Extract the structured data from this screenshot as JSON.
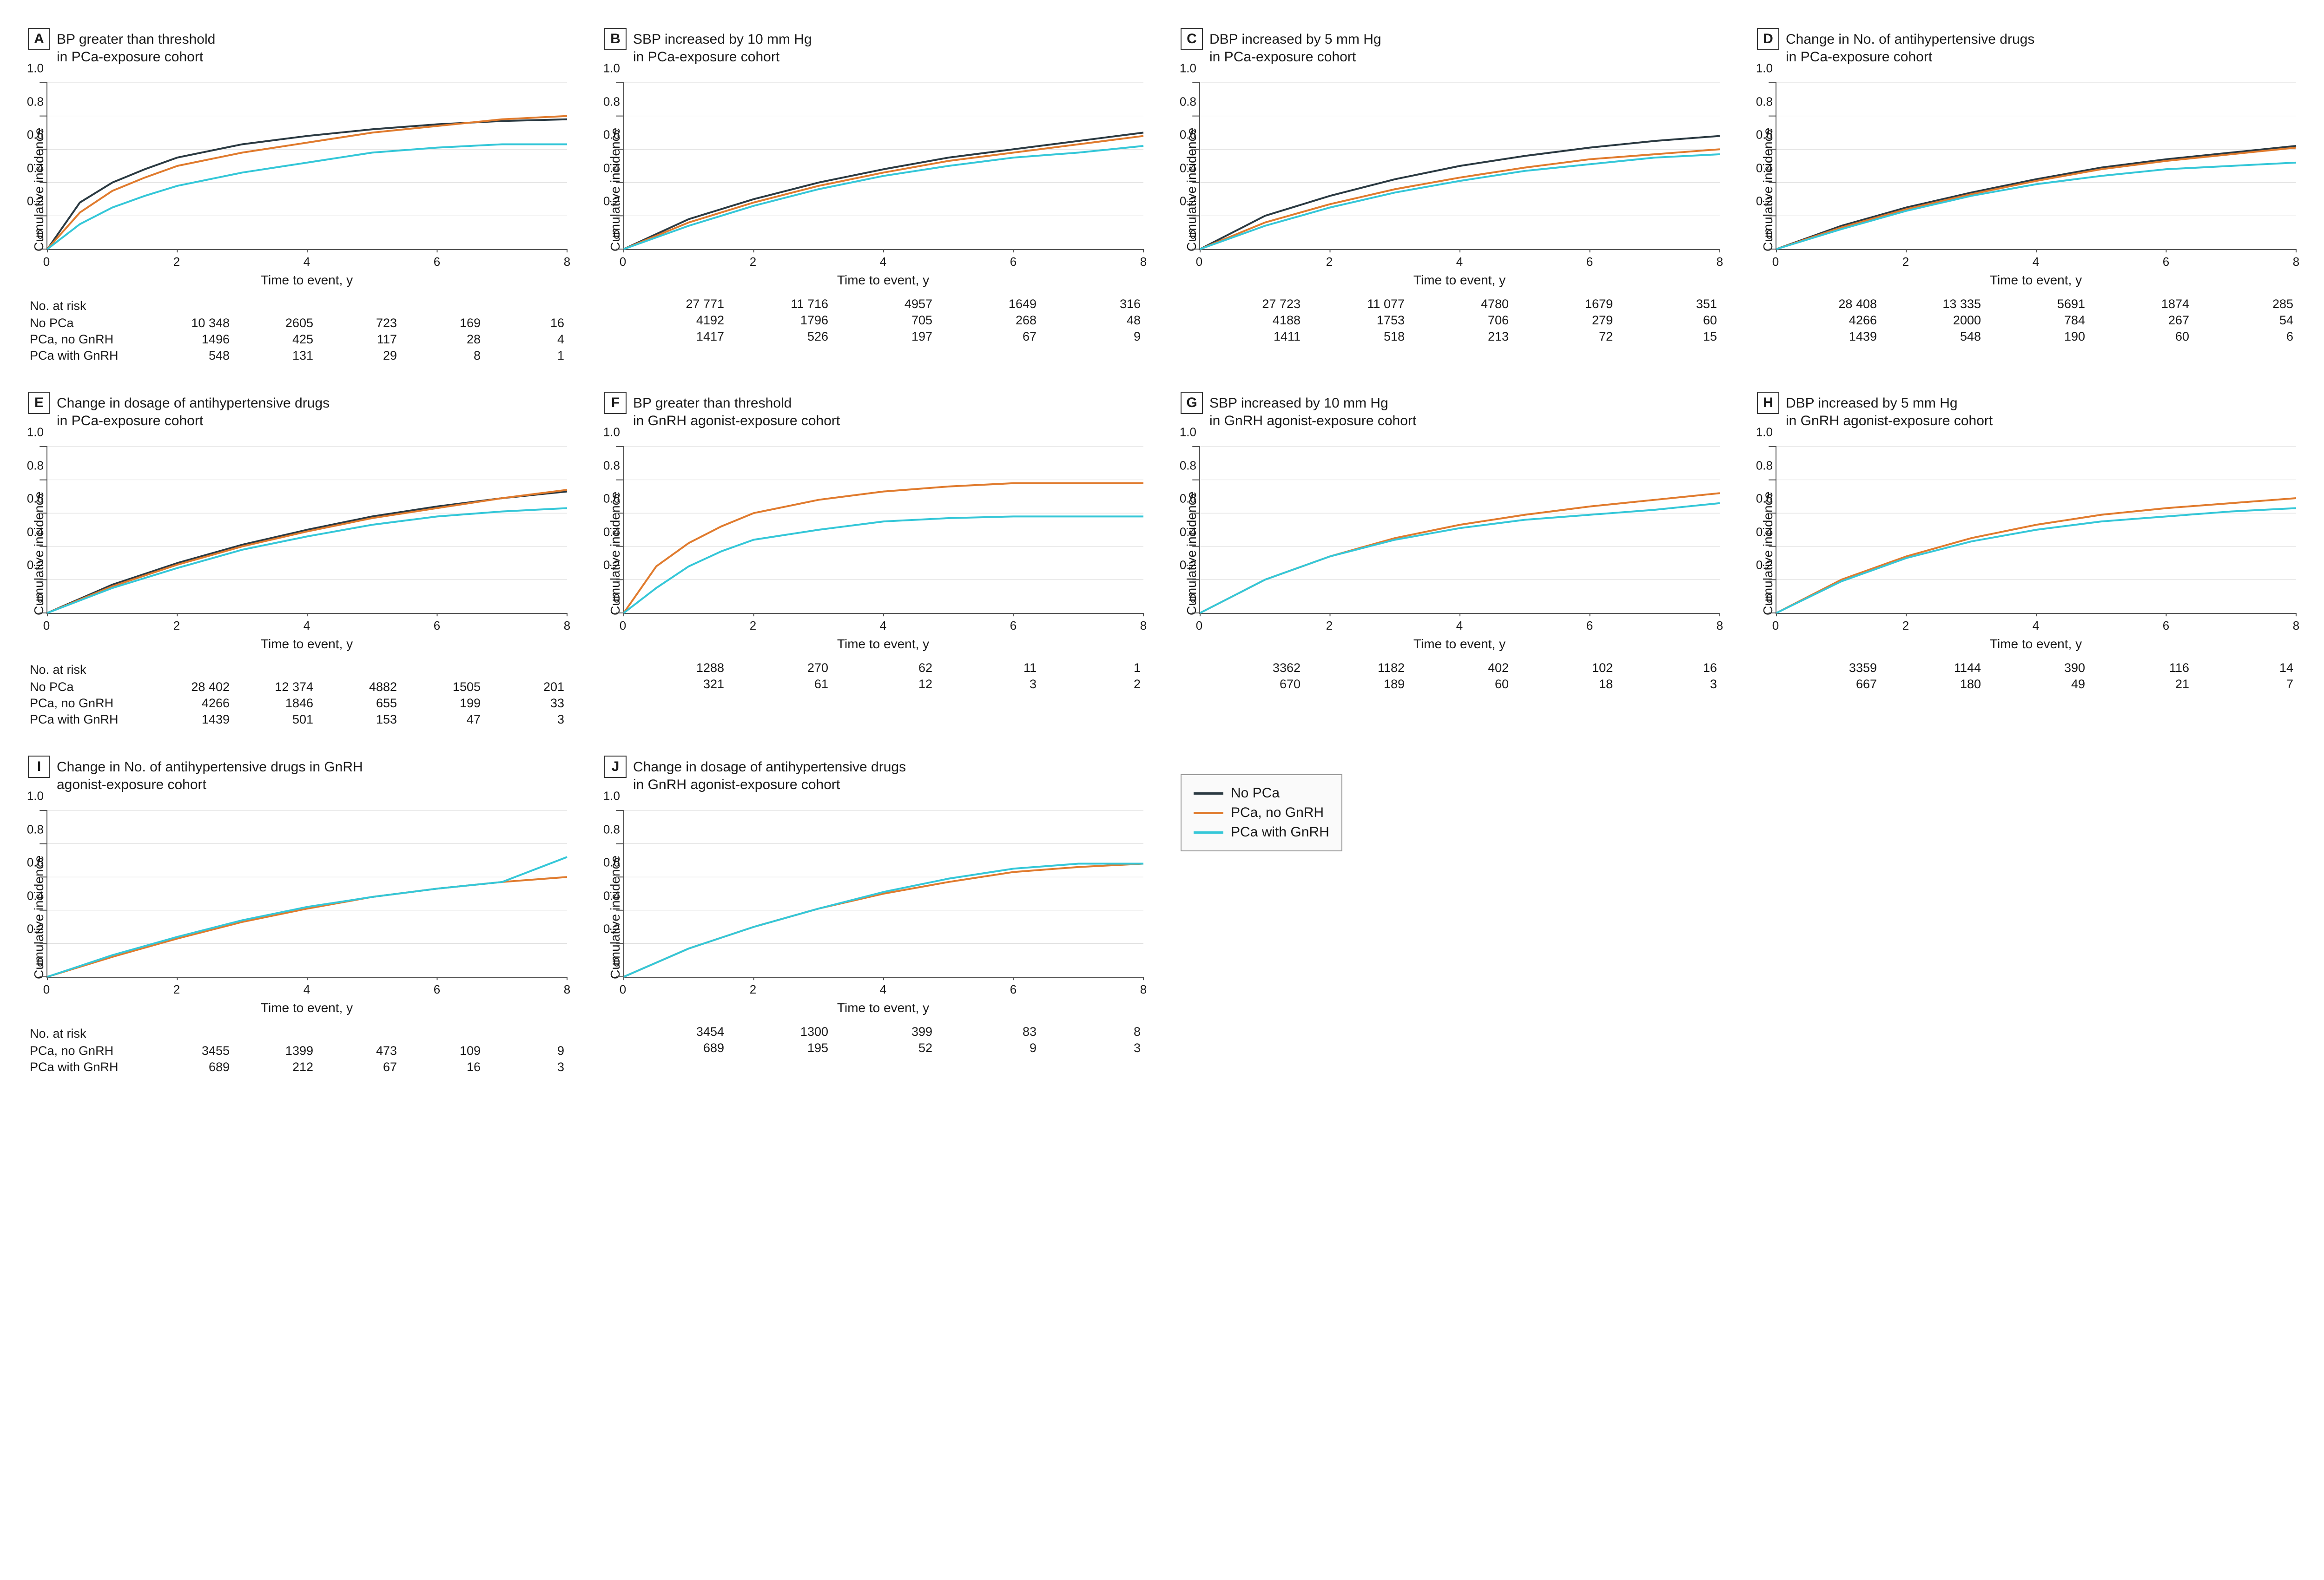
{
  "layout": {
    "cols": 4,
    "background": "#ffffff",
    "text_color": "#1a1a1a",
    "font_family": "Arial, Helvetica, sans-serif"
  },
  "colors": {
    "no_pca": "#2b3a42",
    "pca_no_gnrh": "#e07b2e",
    "pca_gnrh": "#35c7d8",
    "grid": "#d9d9d9",
    "axis": "#555555"
  },
  "axes": {
    "x_label": "Time to event, y",
    "y_label": "Cumulative incidence",
    "x_min": 0,
    "x_max": 8,
    "x_step": 2,
    "y_min": 0,
    "y_max": 1.0,
    "y_step": 0.2
  },
  "series_meta": [
    {
      "key": "no_pca",
      "label": "No PCa",
      "color_key": "no_pca"
    },
    {
      "key": "pca_no_gnrh",
      "label": "PCa, no GnRH",
      "color_key": "pca_no_gnrh"
    },
    {
      "key": "pca_gnrh",
      "label": "PCa with GnRH",
      "color_key": "pca_gnrh"
    }
  ],
  "legend": {
    "items": [
      "No PCa",
      "PCa, no GnRH",
      "PCa with GnRH"
    ]
  },
  "risk_header": "No. at risk",
  "panels": [
    {
      "letter": "A",
      "title": "BP greater than threshold\nin PCa-exposure cohort",
      "show_risk_header": true,
      "show_risk_labels": true,
      "series": {
        "no_pca": {
          "x": [
            0,
            0.5,
            1,
            1.5,
            2,
            3,
            4,
            5,
            6,
            7,
            8
          ],
          "y": [
            0,
            0.28,
            0.4,
            0.48,
            0.55,
            0.63,
            0.68,
            0.72,
            0.75,
            0.77,
            0.78
          ]
        },
        "pca_no_gnrh": {
          "x": [
            0,
            0.5,
            1,
            1.5,
            2,
            3,
            4,
            5,
            6,
            7,
            8
          ],
          "y": [
            0,
            0.22,
            0.35,
            0.43,
            0.5,
            0.58,
            0.64,
            0.7,
            0.74,
            0.78,
            0.8
          ]
        },
        "pca_gnrh": {
          "x": [
            0,
            0.5,
            1,
            1.5,
            2,
            3,
            4,
            5,
            6,
            7,
            8
          ],
          "y": [
            0,
            0.15,
            0.25,
            0.32,
            0.38,
            0.46,
            0.52,
            0.58,
            0.61,
            0.63,
            0.63
          ]
        }
      },
      "risk": {
        "no_pca": [
          "10 348",
          "2605",
          "723",
          "169",
          "16"
        ],
        "pca_no_gnrh": [
          "1496",
          "425",
          "117",
          "28",
          "4"
        ],
        "pca_gnrh": [
          "548",
          "131",
          "29",
          "8",
          "1"
        ]
      }
    },
    {
      "letter": "B",
      "title": "SBP increased by 10 mm Hg\nin PCa-exposure cohort",
      "show_risk_header": false,
      "show_risk_labels": false,
      "series": {
        "no_pca": {
          "x": [
            0,
            1,
            2,
            3,
            4,
            5,
            6,
            7,
            8
          ],
          "y": [
            0,
            0.18,
            0.3,
            0.4,
            0.48,
            0.55,
            0.6,
            0.65,
            0.7
          ]
        },
        "pca_no_gnrh": {
          "x": [
            0,
            1,
            2,
            3,
            4,
            5,
            6,
            7,
            8
          ],
          "y": [
            0,
            0.16,
            0.28,
            0.38,
            0.46,
            0.53,
            0.58,
            0.63,
            0.68
          ]
        },
        "pca_gnrh": {
          "x": [
            0,
            1,
            2,
            3,
            4,
            5,
            6,
            7,
            8
          ],
          "y": [
            0,
            0.14,
            0.26,
            0.36,
            0.44,
            0.5,
            0.55,
            0.58,
            0.62
          ]
        }
      },
      "risk": {
        "no_pca": [
          "27 771",
          "11 716",
          "4957",
          "1649",
          "316"
        ],
        "pca_no_gnrh": [
          "4192",
          "1796",
          "705",
          "268",
          "48"
        ],
        "pca_gnrh": [
          "1417",
          "526",
          "197",
          "67",
          "9"
        ]
      }
    },
    {
      "letter": "C",
      "title": "DBP increased by 5 mm Hg\nin PCa-exposure cohort",
      "show_risk_header": false,
      "show_risk_labels": false,
      "series": {
        "no_pca": {
          "x": [
            0,
            1,
            2,
            3,
            4,
            5,
            6,
            7,
            8
          ],
          "y": [
            0,
            0.2,
            0.32,
            0.42,
            0.5,
            0.56,
            0.61,
            0.65,
            0.68
          ]
        },
        "pca_no_gnrh": {
          "x": [
            0,
            1,
            2,
            3,
            4,
            5,
            6,
            7,
            8
          ],
          "y": [
            0,
            0.16,
            0.27,
            0.36,
            0.43,
            0.49,
            0.54,
            0.57,
            0.6
          ]
        },
        "pca_gnrh": {
          "x": [
            0,
            1,
            2,
            3,
            4,
            5,
            6,
            7,
            8
          ],
          "y": [
            0,
            0.14,
            0.25,
            0.34,
            0.41,
            0.47,
            0.51,
            0.55,
            0.57
          ]
        }
      },
      "risk": {
        "no_pca": [
          "27 723",
          "11 077",
          "4780",
          "1679",
          "351"
        ],
        "pca_no_gnrh": [
          "4188",
          "1753",
          "706",
          "279",
          "60"
        ],
        "pca_gnrh": [
          "1411",
          "518",
          "213",
          "72",
          "15"
        ]
      }
    },
    {
      "letter": "D",
      "title": "Change in No. of antihypertensive drugs\nin PCa-exposure cohort",
      "show_risk_header": false,
      "show_risk_labels": false,
      "series": {
        "no_pca": {
          "x": [
            0,
            1,
            2,
            3,
            4,
            5,
            6,
            7,
            8
          ],
          "y": [
            0,
            0.14,
            0.25,
            0.34,
            0.42,
            0.49,
            0.54,
            0.58,
            0.62
          ]
        },
        "pca_no_gnrh": {
          "x": [
            0,
            1,
            2,
            3,
            4,
            5,
            6,
            7,
            8
          ],
          "y": [
            0,
            0.13,
            0.24,
            0.33,
            0.41,
            0.48,
            0.53,
            0.57,
            0.61
          ]
        },
        "pca_gnrh": {
          "x": [
            0,
            1,
            2,
            3,
            4,
            5,
            6,
            7,
            8
          ],
          "y": [
            0,
            0.12,
            0.23,
            0.32,
            0.39,
            0.44,
            0.48,
            0.5,
            0.52
          ]
        }
      },
      "risk": {
        "no_pca": [
          "28 408",
          "13 335",
          "5691",
          "1874",
          "285"
        ],
        "pca_no_gnrh": [
          "4266",
          "2000",
          "784",
          "267",
          "54"
        ],
        "pca_gnrh": [
          "1439",
          "548",
          "190",
          "60",
          "6"
        ]
      }
    },
    {
      "letter": "E",
      "title": "Change in dosage of antihypertensive drugs\nin PCa-exposure cohort",
      "show_risk_header": true,
      "show_risk_labels": true,
      "series": {
        "no_pca": {
          "x": [
            0,
            1,
            2,
            3,
            4,
            5,
            6,
            7,
            8
          ],
          "y": [
            0,
            0.17,
            0.3,
            0.41,
            0.5,
            0.58,
            0.64,
            0.69,
            0.73
          ]
        },
        "pca_no_gnrh": {
          "x": [
            0,
            1,
            2,
            3,
            4,
            5,
            6,
            7,
            8
          ],
          "y": [
            0,
            0.16,
            0.29,
            0.4,
            0.49,
            0.57,
            0.63,
            0.69,
            0.74
          ]
        },
        "pca_gnrh": {
          "x": [
            0,
            1,
            2,
            3,
            4,
            5,
            6,
            7,
            8
          ],
          "y": [
            0,
            0.15,
            0.27,
            0.38,
            0.46,
            0.53,
            0.58,
            0.61,
            0.63
          ]
        }
      },
      "risk": {
        "no_pca": [
          "28 402",
          "12 374",
          "4882",
          "1505",
          "201"
        ],
        "pca_no_gnrh": [
          "4266",
          "1846",
          "655",
          "199",
          "33"
        ],
        "pca_gnrh": [
          "1439",
          "501",
          "153",
          "47",
          "3"
        ]
      }
    },
    {
      "letter": "F",
      "title": "BP greater than threshold\nin GnRH agonist-exposure cohort",
      "show_risk_header": false,
      "show_risk_labels": false,
      "series": {
        "pca_no_gnrh": {
          "x": [
            0,
            0.5,
            1,
            1.5,
            2,
            3,
            4,
            5,
            6,
            7,
            8
          ],
          "y": [
            0,
            0.28,
            0.42,
            0.52,
            0.6,
            0.68,
            0.73,
            0.76,
            0.78,
            0.78,
            0.78
          ]
        },
        "pca_gnrh": {
          "x": [
            0,
            0.5,
            1,
            1.5,
            2,
            3,
            4,
            5,
            6,
            7,
            8
          ],
          "y": [
            0,
            0.15,
            0.28,
            0.37,
            0.44,
            0.5,
            0.55,
            0.57,
            0.58,
            0.58,
            0.58
          ]
        }
      },
      "risk": {
        "pca_no_gnrh": [
          "1288",
          "270",
          "62",
          "11",
          "1"
        ],
        "pca_gnrh": [
          "321",
          "61",
          "12",
          "3",
          "2"
        ]
      }
    },
    {
      "letter": "G",
      "title": "SBP increased by 10 mm Hg\nin GnRH agonist-exposure cohort",
      "show_risk_header": false,
      "show_risk_labels": false,
      "series": {
        "pca_no_gnrh": {
          "x": [
            0,
            1,
            2,
            3,
            4,
            5,
            6,
            7,
            8
          ],
          "y": [
            0,
            0.2,
            0.34,
            0.45,
            0.53,
            0.59,
            0.64,
            0.68,
            0.72
          ]
        },
        "pca_gnrh": {
          "x": [
            0,
            1,
            2,
            3,
            4,
            5,
            6,
            7,
            8
          ],
          "y": [
            0,
            0.2,
            0.34,
            0.44,
            0.51,
            0.56,
            0.59,
            0.62,
            0.66
          ]
        }
      },
      "risk": {
        "pca_no_gnrh": [
          "3362",
          "1182",
          "402",
          "102",
          "16"
        ],
        "pca_gnrh": [
          "670",
          "189",
          "60",
          "18",
          "3"
        ]
      }
    },
    {
      "letter": "H",
      "title": "DBP increased by 5 mm Hg\nin GnRH agonist-exposure cohort",
      "show_risk_header": false,
      "show_risk_labels": false,
      "series": {
        "pca_no_gnrh": {
          "x": [
            0,
            1,
            2,
            3,
            4,
            5,
            6,
            7,
            8
          ],
          "y": [
            0,
            0.2,
            0.34,
            0.45,
            0.53,
            0.59,
            0.63,
            0.66,
            0.69
          ]
        },
        "pca_gnrh": {
          "x": [
            0,
            1,
            2,
            3,
            4,
            5,
            6,
            7,
            8
          ],
          "y": [
            0,
            0.19,
            0.33,
            0.43,
            0.5,
            0.55,
            0.58,
            0.61,
            0.63
          ]
        }
      },
      "risk": {
        "pca_no_gnrh": [
          "3359",
          "1144",
          "390",
          "116",
          "14"
        ],
        "pca_gnrh": [
          "667",
          "180",
          "49",
          "21",
          "7"
        ]
      }
    },
    {
      "letter": "I",
      "title": "Change in No. of antihypertensive drugs in GnRH\nagonist-exposure cohort",
      "show_risk_header": true,
      "show_risk_labels": true,
      "series": {
        "pca_no_gnrh": {
          "x": [
            0,
            1,
            2,
            3,
            4,
            5,
            6,
            7,
            8
          ],
          "y": [
            0,
            0.12,
            0.23,
            0.33,
            0.41,
            0.48,
            0.53,
            0.57,
            0.6
          ]
        },
        "pca_gnrh": {
          "x": [
            0,
            1,
            2,
            3,
            4,
            5,
            6,
            7,
            8
          ],
          "y": [
            0,
            0.13,
            0.24,
            0.34,
            0.42,
            0.48,
            0.53,
            0.57,
            0.72
          ]
        }
      },
      "risk": {
        "pca_no_gnrh": [
          "3455",
          "1399",
          "473",
          "109",
          "9"
        ],
        "pca_gnrh": [
          "689",
          "212",
          "67",
          "16",
          "3"
        ]
      }
    },
    {
      "letter": "J",
      "title": "Change in dosage of antihypertensive drugs\nin GnRH agonist-exposure cohort",
      "show_risk_header": false,
      "show_risk_labels": false,
      "series": {
        "pca_no_gnrh": {
          "x": [
            0,
            1,
            2,
            3,
            4,
            5,
            6,
            7,
            8
          ],
          "y": [
            0,
            0.17,
            0.3,
            0.41,
            0.5,
            0.57,
            0.63,
            0.66,
            0.68
          ]
        },
        "pca_gnrh": {
          "x": [
            0,
            1,
            2,
            3,
            4,
            5,
            6,
            7,
            8
          ],
          "y": [
            0,
            0.17,
            0.3,
            0.41,
            0.51,
            0.59,
            0.65,
            0.68,
            0.68
          ]
        }
      },
      "risk": {
        "pca_no_gnrh": [
          "3454",
          "1300",
          "399",
          "83",
          "8"
        ],
        "pca_gnrh": [
          "689",
          "195",
          "52",
          "9",
          "3"
        ]
      }
    }
  ]
}
